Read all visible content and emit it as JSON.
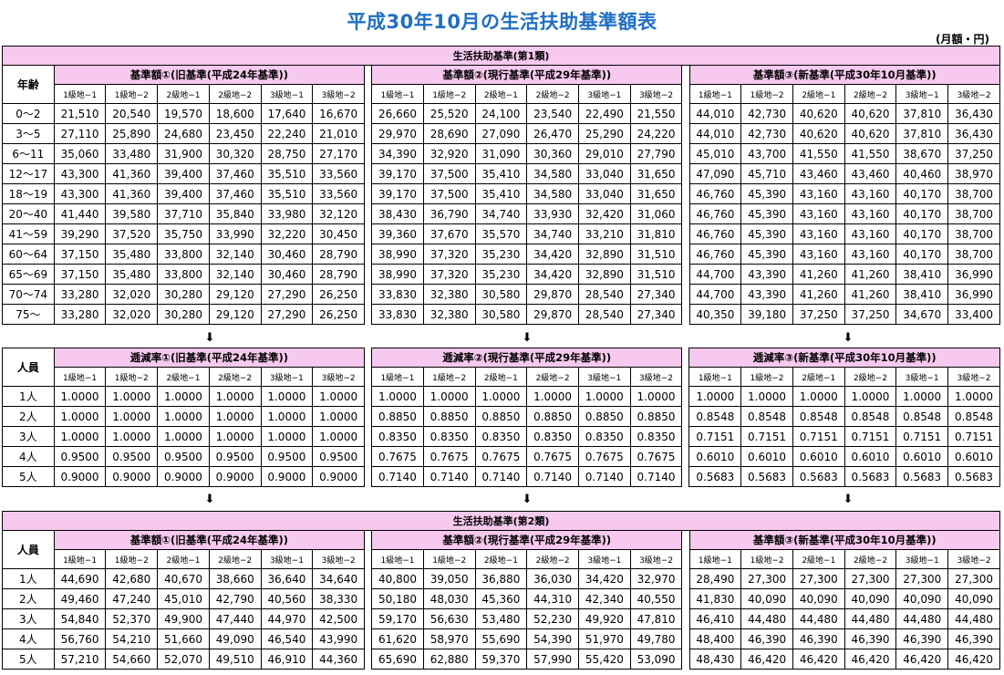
{
  "title": "平成30年10月の生活扶助基準額表",
  "unit": "(月額・円)",
  "arrow_glyph": "⬇",
  "levels": [
    "1級地−1",
    "1級地−2",
    "2級地−1",
    "2級地−2",
    "3級地−1",
    "3級地−2"
  ],
  "section1": {
    "header": "生活扶助基準(第1類)",
    "row_label_header": "年齢",
    "groups": [
      "基準額①(旧基準(平成24年基準))",
      "基準額②(現行基準(平成29年基準))",
      "基準額③(新基準(平成30年10月基準))"
    ],
    "rows": [
      {
        "label": "0〜2",
        "values": [
          [
            "21,510",
            "20,540",
            "19,570",
            "18,600",
            "17,640",
            "16,670"
          ],
          [
            "26,660",
            "25,520",
            "24,100",
            "23,540",
            "22,490",
            "21,550"
          ],
          [
            "44,010",
            "42,730",
            "40,620",
            "40,620",
            "37,810",
            "36,430"
          ]
        ]
      },
      {
        "label": "3〜5",
        "values": [
          [
            "27,110",
            "25,890",
            "24,680",
            "23,450",
            "22,240",
            "21,010"
          ],
          [
            "29,970",
            "28,690",
            "27,090",
            "26,470",
            "25,290",
            "24,220"
          ],
          [
            "44,010",
            "42,730",
            "40,620",
            "40,620",
            "37,810",
            "36,430"
          ]
        ]
      },
      {
        "label": "6〜11",
        "values": [
          [
            "35,060",
            "33,480",
            "31,900",
            "30,320",
            "28,750",
            "27,170"
          ],
          [
            "34,390",
            "32,920",
            "31,090",
            "30,360",
            "29,010",
            "27,790"
          ],
          [
            "45,010",
            "43,700",
            "41,550",
            "41,550",
            "38,670",
            "37,250"
          ]
        ]
      },
      {
        "label": "12〜17",
        "values": [
          [
            "43,300",
            "41,360",
            "39,400",
            "37,460",
            "35,510",
            "33,560"
          ],
          [
            "39,170",
            "37,500",
            "35,410",
            "34,580",
            "33,040",
            "31,650"
          ],
          [
            "47,090",
            "45,710",
            "43,460",
            "43,460",
            "40,460",
            "38,970"
          ]
        ]
      },
      {
        "label": "18〜19",
        "values": [
          [
            "43,300",
            "41,360",
            "39,400",
            "37,460",
            "35,510",
            "33,560"
          ],
          [
            "39,170",
            "37,500",
            "35,410",
            "34,580",
            "33,040",
            "31,650"
          ],
          [
            "46,760",
            "45,390",
            "43,160",
            "43,160",
            "40,170",
            "38,700"
          ]
        ]
      },
      {
        "label": "20〜40",
        "values": [
          [
            "41,440",
            "39,580",
            "37,710",
            "35,840",
            "33,980",
            "32,120"
          ],
          [
            "38,430",
            "36,790",
            "34,740",
            "33,930",
            "32,420",
            "31,060"
          ],
          [
            "46,760",
            "45,390",
            "43,160",
            "43,160",
            "40,170",
            "38,700"
          ]
        ]
      },
      {
        "label": "41〜59",
        "values": [
          [
            "39,290",
            "37,520",
            "35,750",
            "33,990",
            "32,220",
            "30,450"
          ],
          [
            "39,360",
            "37,670",
            "35,570",
            "34,740",
            "33,210",
            "31,810"
          ],
          [
            "46,760",
            "45,390",
            "43,160",
            "43,160",
            "40,170",
            "38,700"
          ]
        ]
      },
      {
        "label": "60〜64",
        "values": [
          [
            "37,150",
            "35,480",
            "33,800",
            "32,140",
            "30,460",
            "28,790"
          ],
          [
            "38,990",
            "37,320",
            "35,230",
            "34,420",
            "32,890",
            "31,510"
          ],
          [
            "46,760",
            "45,390",
            "43,160",
            "43,160",
            "40,170",
            "38,700"
          ]
        ]
      },
      {
        "label": "65〜69",
        "values": [
          [
            "37,150",
            "35,480",
            "33,800",
            "32,140",
            "30,460",
            "28,790"
          ],
          [
            "38,990",
            "37,320",
            "35,230",
            "34,420",
            "32,890",
            "31,510"
          ],
          [
            "44,700",
            "43,390",
            "41,260",
            "41,260",
            "38,410",
            "36,990"
          ]
        ]
      },
      {
        "label": "70〜74",
        "values": [
          [
            "33,280",
            "32,020",
            "30,280",
            "29,120",
            "27,290",
            "26,250"
          ],
          [
            "33,830",
            "32,380",
            "30,580",
            "29,870",
            "28,540",
            "27,340"
          ],
          [
            "44,700",
            "43,390",
            "41,260",
            "41,260",
            "38,410",
            "36,990"
          ]
        ]
      },
      {
        "label": "75〜",
        "values": [
          [
            "33,280",
            "32,020",
            "30,280",
            "29,120",
            "27,290",
            "26,250"
          ],
          [
            "33,830",
            "32,380",
            "30,580",
            "29,870",
            "28,540",
            "27,340"
          ],
          [
            "40,350",
            "39,180",
            "37,250",
            "37,250",
            "34,670",
            "33,400"
          ]
        ]
      }
    ]
  },
  "section2": {
    "row_label_header": "人員",
    "groups": [
      "逓減率①(旧基準(平成24年基準))",
      "逓減率②(現行基準(平成29年基準))",
      "逓減率③(新基準(平成30年10月基準))"
    ],
    "rows": [
      {
        "label": "1人",
        "values": [
          [
            "1.0000",
            "1.0000",
            "1.0000",
            "1.0000",
            "1.0000",
            "1.0000"
          ],
          [
            "1.0000",
            "1.0000",
            "1.0000",
            "1.0000",
            "1.0000",
            "1.0000"
          ],
          [
            "1.0000",
            "1.0000",
            "1.0000",
            "1.0000",
            "1.0000",
            "1.0000"
          ]
        ]
      },
      {
        "label": "2人",
        "values": [
          [
            "1.0000",
            "1.0000",
            "1.0000",
            "1.0000",
            "1.0000",
            "1.0000"
          ],
          [
            "0.8850",
            "0.8850",
            "0.8850",
            "0.8850",
            "0.8850",
            "0.8850"
          ],
          [
            "0.8548",
            "0.8548",
            "0.8548",
            "0.8548",
            "0.8548",
            "0.8548"
          ]
        ]
      },
      {
        "label": "3人",
        "values": [
          [
            "1.0000",
            "1.0000",
            "1.0000",
            "1.0000",
            "1.0000",
            "1.0000"
          ],
          [
            "0.8350",
            "0.8350",
            "0.8350",
            "0.8350",
            "0.8350",
            "0.8350"
          ],
          [
            "0.7151",
            "0.7151",
            "0.7151",
            "0.7151",
            "0.7151",
            "0.7151"
          ]
        ]
      },
      {
        "label": "4人",
        "values": [
          [
            "0.9500",
            "0.9500",
            "0.9500",
            "0.9500",
            "0.9500",
            "0.9500"
          ],
          [
            "0.7675",
            "0.7675",
            "0.7675",
            "0.7675",
            "0.7675",
            "0.7675"
          ],
          [
            "0.6010",
            "0.6010",
            "0.6010",
            "0.6010",
            "0.6010",
            "0.6010"
          ]
        ]
      },
      {
        "label": "5人",
        "values": [
          [
            "0.9000",
            "0.9000",
            "0.9000",
            "0.9000",
            "0.9000",
            "0.9000"
          ],
          [
            "0.7140",
            "0.7140",
            "0.7140",
            "0.7140",
            "0.7140",
            "0.7140"
          ],
          [
            "0.5683",
            "0.5683",
            "0.5683",
            "0.5683",
            "0.5683",
            "0.5683"
          ]
        ]
      }
    ]
  },
  "section3": {
    "header": "生活扶助基準(第2類)",
    "row_label_header": "人員",
    "groups": [
      "基準額①(旧基準(平成24年基準))",
      "基準額②(現行基準(平成29年基準))",
      "基準額③(新基準(平成30年10月基準))"
    ],
    "rows": [
      {
        "label": "1人",
        "values": [
          [
            "44,690",
            "42,680",
            "40,670",
            "38,660",
            "36,640",
            "34,640"
          ],
          [
            "40,800",
            "39,050",
            "36,880",
            "36,030",
            "34,420",
            "32,970"
          ],
          [
            "28,490",
            "27,300",
            "27,300",
            "27,300",
            "27,300",
            "27,300"
          ]
        ]
      },
      {
        "label": "2人",
        "values": [
          [
            "49,460",
            "47,240",
            "45,010",
            "42,790",
            "40,560",
            "38,330"
          ],
          [
            "50,180",
            "48,030",
            "45,360",
            "44,310",
            "42,340",
            "40,550"
          ],
          [
            "41,830",
            "40,090",
            "40,090",
            "40,090",
            "40,090",
            "40,090"
          ]
        ]
      },
      {
        "label": "3人",
        "values": [
          [
            "54,840",
            "52,370",
            "49,900",
            "47,440",
            "44,970",
            "42,500"
          ],
          [
            "59,170",
            "56,630",
            "53,480",
            "52,230",
            "49,920",
            "47,810"
          ],
          [
            "46,410",
            "44,480",
            "44,480",
            "44,480",
            "44,480",
            "44,480"
          ]
        ]
      },
      {
        "label": "4人",
        "values": [
          [
            "56,760",
            "54,210",
            "51,660",
            "49,090",
            "46,540",
            "43,990"
          ],
          [
            "61,620",
            "58,970",
            "55,690",
            "54,390",
            "51,970",
            "49,780"
          ],
          [
            "48,400",
            "46,390",
            "46,390",
            "46,390",
            "46,390",
            "46,390"
          ]
        ]
      },
      {
        "label": "5人",
        "values": [
          [
            "57,210",
            "54,660",
            "52,070",
            "49,510",
            "46,910",
            "44,360"
          ],
          [
            "65,690",
            "62,880",
            "59,370",
            "57,990",
            "55,420",
            "53,090"
          ],
          [
            "48,430",
            "46,420",
            "46,420",
            "46,420",
            "46,420",
            "46,420"
          ]
        ]
      }
    ]
  }
}
